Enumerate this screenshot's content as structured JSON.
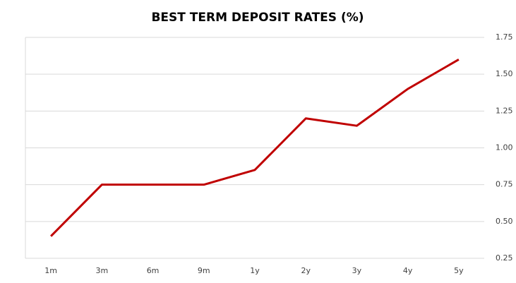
{
  "chart_data": {
    "type": "line",
    "title": "BEST TERM DEPOSIT RATES (%)",
    "categories": [
      "1m",
      "3m",
      "6m",
      "9m",
      "1y",
      "2y",
      "3y",
      "4y",
      "5y"
    ],
    "values": [
      0.4,
      0.75,
      0.75,
      0.75,
      0.85,
      1.2,
      1.15,
      1.4,
      1.6
    ],
    "color": "#c00000",
    "ylim": [
      0.25,
      1.75
    ],
    "yticks": [
      0.25,
      {
        "value": 0.5,
        "label": "0.50"
      },
      0.75,
      {
        "value": 1,
        "label": "1.00"
      },
      1.25,
      {
        "value": 1.5,
        "label": "1.50"
      },
      1.75
    ],
    "grid": true
  }
}
